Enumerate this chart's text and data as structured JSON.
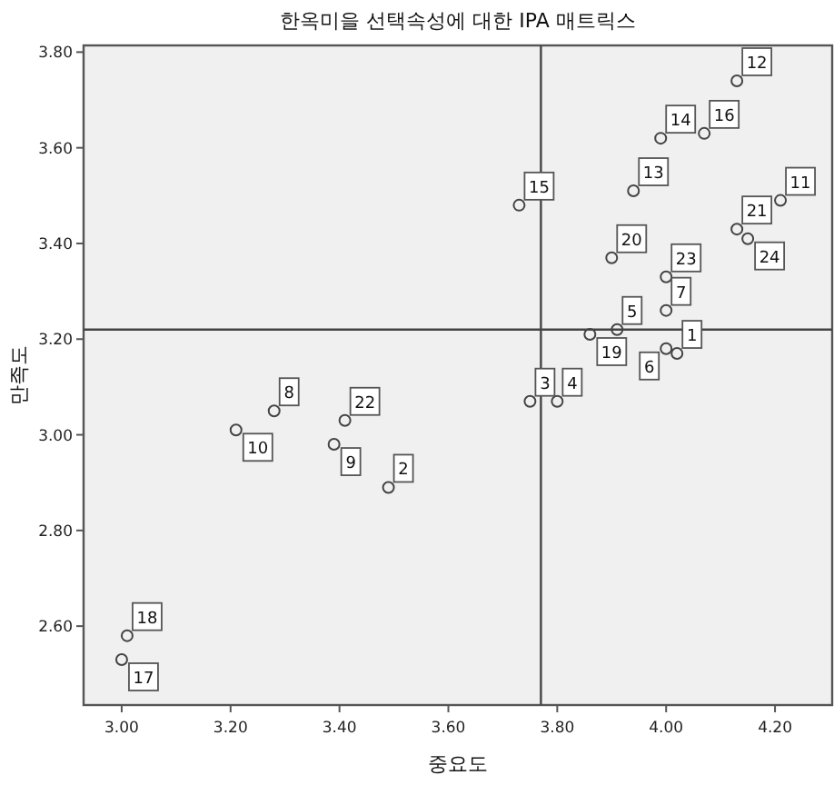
{
  "chart_data": {
    "type": "scatter",
    "title": "한옥미을 선택속성에 대한 IPA 매트릭스",
    "xlabel": "중요도",
    "ylabel": "만족도",
    "marker": "circle",
    "grid": false,
    "xlim": [
      2.93,
      4.305
    ],
    "ylim": [
      2.435,
      3.814
    ],
    "xticks": [
      {
        "value": 3.0,
        "label": "3.00"
      },
      {
        "value": 3.2,
        "label": "3.20"
      },
      {
        "value": 3.4,
        "label": "3.40"
      },
      {
        "value": 3.6,
        "label": "3.60"
      },
      {
        "value": 3.8,
        "label": "3.80"
      },
      {
        "value": 4.0,
        "label": "4.00"
      },
      {
        "value": 4.2,
        "label": "4.20"
      }
    ],
    "yticks": [
      {
        "value": 2.6,
        "label": "2.60"
      },
      {
        "value": 2.8,
        "label": "2.80"
      },
      {
        "value": 3.0,
        "label": "3.00"
      },
      {
        "value": 3.2,
        "label": "3.20"
      },
      {
        "value": 3.4,
        "label": "3.40"
      },
      {
        "value": 3.6,
        "label": "3.60"
      },
      {
        "value": 3.8,
        "label": "3.80"
      }
    ],
    "ref_lines": [
      {
        "axis": "x",
        "value": 3.77,
        "color": "#444444"
      },
      {
        "axis": "y",
        "value": 3.22,
        "color": "#444444"
      }
    ],
    "series": [
      {
        "color": "#444444",
        "x": [
          4.02,
          3.49,
          3.75,
          3.8,
          3.91,
          4.0,
          4.0,
          3.28,
          3.39,
          3.21,
          4.21,
          4.13,
          3.94,
          3.99,
          3.73,
          4.07,
          3.0,
          3.01,
          3.86,
          3.9,
          4.13,
          3.41,
          4.0,
          4.15
        ],
        "values": [
          3.17,
          2.89,
          3.07,
          3.07,
          3.22,
          3.18,
          3.26,
          3.05,
          2.98,
          3.01,
          3.49,
          3.74,
          3.51,
          3.62,
          3.48,
          3.63,
          2.53,
          2.58,
          3.21,
          3.37,
          3.43,
          3.03,
          3.33,
          3.41
        ]
      }
    ],
    "annotations": [
      {
        "text": "1",
        "x": 4.02,
        "y": 3.17
      },
      {
        "text": "2",
        "x": 3.49,
        "y": 2.89
      },
      {
        "text": "3",
        "x": 3.75,
        "y": 3.07
      },
      {
        "text": "4",
        "x": 3.8,
        "y": 3.07
      },
      {
        "text": "5",
        "x": 3.91,
        "y": 3.22
      },
      {
        "text": "6",
        "x": 4.0,
        "y": 3.18
      },
      {
        "text": "7",
        "x": 4.0,
        "y": 3.26
      },
      {
        "text": "8",
        "x": 3.28,
        "y": 3.05
      },
      {
        "text": "9",
        "x": 3.39,
        "y": 2.98
      },
      {
        "text": "10",
        "x": 3.21,
        "y": 3.01
      },
      {
        "text": "11",
        "x": 4.21,
        "y": 3.49
      },
      {
        "text": "12",
        "x": 4.13,
        "y": 3.74
      },
      {
        "text": "13",
        "x": 3.94,
        "y": 3.51
      },
      {
        "text": "14",
        "x": 3.99,
        "y": 3.62
      },
      {
        "text": "15",
        "x": 3.73,
        "y": 3.48
      },
      {
        "text": "16",
        "x": 4.07,
        "y": 3.63
      },
      {
        "text": "17",
        "x": 3.0,
        "y": 2.53
      },
      {
        "text": "18",
        "x": 3.01,
        "y": 2.58
      },
      {
        "text": "19",
        "x": 3.86,
        "y": 3.21
      },
      {
        "text": "20",
        "x": 3.9,
        "y": 3.37
      },
      {
        "text": "21",
        "x": 4.13,
        "y": 3.43
      },
      {
        "text": "22",
        "x": 3.41,
        "y": 3.03
      },
      {
        "text": "23",
        "x": 4.0,
        "y": 3.33
      },
      {
        "text": "24",
        "x": 4.15,
        "y": 3.41
      }
    ]
  }
}
